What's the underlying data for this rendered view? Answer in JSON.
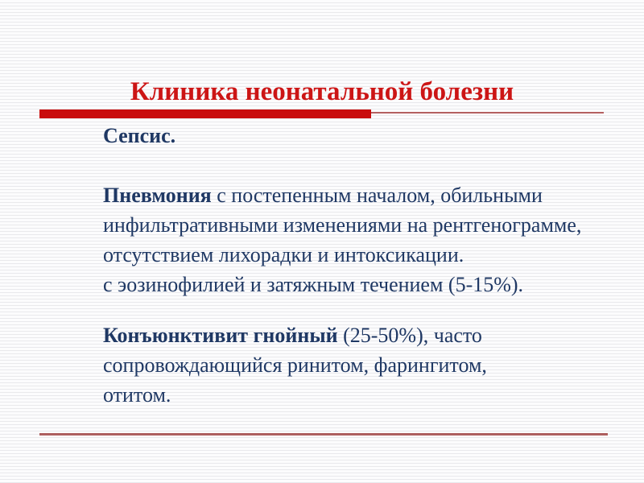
{
  "slide": {
    "title": "Клиника неонатальной болезни",
    "paragraphs": [
      {
        "name": "sepsis",
        "lines": [
          {
            "bold": "Сепсис.",
            "text": ""
          }
        ]
      },
      {
        "name": "pneumonia",
        "lines": [
          {
            "bold": "Пневмония",
            "text": " с постепенным началом, обильными"
          },
          {
            "bold": "",
            "text": "инфильтративными изменениями на рентгенограмме,"
          },
          {
            "bold": "",
            "text": "отсутствием лихорадки и интоксикации."
          },
          {
            "bold": "",
            "text": "с эозинофилией и затяжным течением (5-15%)."
          }
        ]
      },
      {
        "name": "conjunctivitis",
        "lines": [
          {
            "bold": "Конъюнктивит гнойный",
            "text": " (25-50%), часто"
          },
          {
            "bold": "",
            "text": "сопровождающийся ринитом, фарингитом,"
          },
          {
            "bold": "",
            "text": "отитом."
          }
        ]
      }
    ],
    "colors": {
      "title_red": "#cc1515",
      "bar_red": "#c90d0d",
      "thin_line_rose": "#b46060",
      "bottom_rule_rose": "#ad5f5f",
      "body_navy": "#1f3864",
      "stripe_gray": "#e9e9ec"
    }
  }
}
